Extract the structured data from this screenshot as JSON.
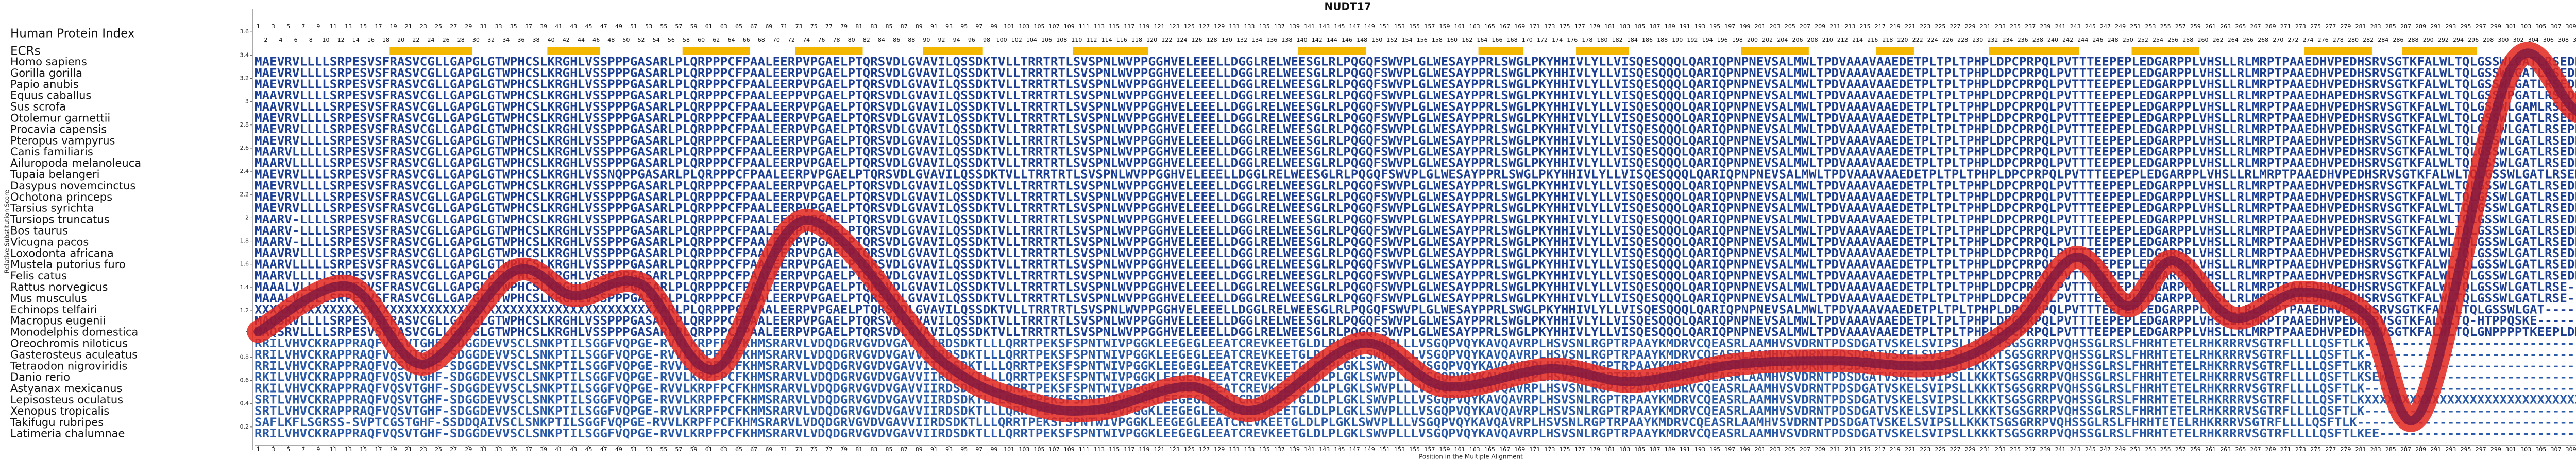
{
  "chart_data": {
    "type": "line",
    "title": "NUDT17",
    "x_label": "Position in the Multiple Alignment",
    "y_label": "Relative Substitution Score",
    "index_label": "Human Protein Index",
    "ecr_label": "ECRs",
    "ecr_color": "#f5b800",
    "ecrs": [
      [
        19,
        29
      ],
      [
        40,
        46
      ],
      [
        58,
        66
      ],
      [
        73,
        81
      ],
      [
        90,
        97
      ],
      [
        110,
        119
      ],
      [
        140,
        148
      ],
      [
        164,
        169
      ],
      [
        177,
        183
      ],
      [
        199,
        207
      ],
      [
        217,
        221
      ],
      [
        232,
        243
      ],
      [
        251,
        259
      ],
      [
        274,
        282
      ],
      [
        287,
        296
      ]
    ],
    "ylim": [
      0,
      3.8
    ],
    "yticks": [
      0.2,
      0.4,
      0.6,
      0.8,
      1,
      1.2,
      1.4,
      1.6,
      1.8,
      2,
      2.2,
      2.4,
      2.6,
      2.8,
      3,
      3.2,
      3.4,
      3.6
    ],
    "xlim": [
      0.5,
      324.5
    ],
    "xticks": [
      1,
      2,
      3,
      4,
      5,
      6,
      7,
      8,
      9,
      10,
      11,
      12,
      13,
      14,
      15,
      16,
      17,
      18,
      19,
      20,
      21,
      22,
      23,
      24,
      25,
      26,
      27,
      28,
      29,
      30,
      31,
      32,
      33,
      34,
      35,
      36,
      37,
      38,
      39,
      40,
      41,
      42,
      43,
      44,
      45,
      46,
      47,
      48,
      49,
      50,
      51,
      52,
      53,
      54,
      55,
      56,
      57,
      58,
      59,
      60,
      61,
      62,
      63,
      64,
      65,
      66,
      67,
      68,
      69,
      70,
      71,
      72,
      73,
      74,
      75,
      76,
      77,
      78,
      79,
      80,
      81,
      82,
      83,
      84,
      85,
      86,
      87,
      88,
      89,
      90,
      91,
      92,
      93,
      94,
      95,
      96,
      97,
      98,
      99,
      100,
      101,
      102,
      103,
      104,
      105,
      106,
      107,
      108,
      109,
      110,
      111,
      112,
      113,
      114,
      115,
      116,
      117,
      118,
      119,
      120,
      121,
      122,
      123,
      124,
      125,
      126,
      127,
      128,
      129,
      130,
      131,
      132,
      133,
      134,
      135,
      136,
      137,
      138,
      139,
      140,
      141,
      142,
      143,
      144,
      145,
      146,
      147,
      148,
      149,
      150,
      151,
      152,
      153,
      154,
      155,
      156,
      157,
      158,
      159,
      160,
      161,
      162,
      163,
      164,
      165,
      166,
      167,
      168,
      169,
      170,
      171,
      172,
      173,
      174,
      175,
      176,
      177,
      178,
      179,
      180,
      181,
      182,
      183,
      184,
      185,
      186,
      187,
      188,
      189,
      190,
      191,
      192,
      193,
      194,
      195,
      196,
      197,
      198,
      199,
      200,
      201,
      202,
      203,
      204,
      205,
      206,
      207,
      208,
      209,
      210,
      211,
      212,
      213,
      214,
      215,
      216,
      217,
      218,
      219,
      220,
      221,
      222,
      223,
      224,
      225,
      226,
      227,
      228,
      229,
      230,
      231,
      232,
      233,
      234,
      235,
      236,
      237,
      238,
      239,
      240,
      241,
      242,
      243,
      244,
      245,
      246,
      247,
      248,
      249,
      250,
      251,
      252,
      253,
      254,
      255,
      256,
      257,
      258,
      259,
      260,
      261,
      262,
      263,
      264,
      265,
      266,
      267,
      268,
      269,
      270,
      271,
      272,
      273,
      274,
      275,
      276,
      277,
      278,
      279,
      280,
      281,
      282,
      283,
      284,
      285,
      286,
      287,
      288,
      289,
      290,
      291,
      292,
      293,
      294,
      295,
      296,
      297,
      298,
      299,
      300,
      301,
      302,
      303,
      304,
      305,
      306,
      307,
      308,
      309,
      310,
      311,
      312,
      313,
      314,
      315,
      316,
      317,
      318,
      319,
      320,
      321,
      322,
      323,
      324
    ],
    "series": [
      {
        "color": "#e3261d",
        "x": [
          1,
          13,
          23,
          35,
          43,
          52,
          62,
          74,
          92,
          104,
          113,
          125,
          134,
          148,
          159,
          173,
          184,
          198,
          211,
          225,
          235,
          243,
          250,
          256,
          264,
          273,
          282,
          289,
          301,
          310,
          319,
          324
        ],
        "values": [
          1.02,
          1.41,
          0.74,
          1.54,
          1.33,
          1.43,
          0.7,
          1.98,
          0.77,
          0.4,
          0.35,
          0.55,
          0.35,
          0.92,
          0.55,
          0.7,
          0.59,
          0.74,
          0.77,
          0.74,
          1.06,
          1.66,
          1.24,
          1.63,
          1.14,
          1.36,
          1.14,
          0.33,
          3.28,
          2.91,
          2.72,
          2.72
        ]
      }
    ],
    "species": [
      {
        "name": "Homo sapiens",
        "sequence": "MAEVRVLLLLSRPESVSFRASVCGLLGAPGLGTWPHCSLKRGHLVSSPPPGASARLPLQRPPPCFPAALEERPVPGAELPTQRSVDLGVAVILQSSDKTVLLTRRTRTLSVSPNLWVPPGGHVELEEELLDGGLRELWEESGLRLPQGQFSWVPLGLWESAYPPRLSWGLPKYHHIVLYLLVISQESQQQLQARIQPNPNEVSALMWLTPDVAAAVAAEDETPLTPLTPHPLDPCPRPQLPVTTTEEPEPLEDGARPPLVHSLLRLMRPTPAAEDHVPEDHSRVSGTKFALWLTQLGSSWLGATLRSEDPGPGGLEPAGDCTGR"
      },
      {
        "name": "Gorilla gorilla",
        "sequence": "MAEVRVLLLLSRPESVSFRASVCGLLGAPGLGTWPHCSLKRGHLVSSPPPGASARLPLQRPPPCFPAALEERPVPGAELPTQRSVDLGVAVILQSSDKTVLLTRRTRTLSVSPNLWVPPGGHVELEEELLDGGLRELWEESGLRLPQGQFSWVPLGLWESAYPPRLSWGLPKYHHIVLYLLVISQESQQQLQARIQPNPNEVSALMWLTPDVAAAVAAEDETPLTPLTPHPLDPCPRPQLPVTTTEEPEPLEDGARPPLVHSLLRLMRPTPAAEDHVPEDHSRVSGTKFALWLTQLGSSWLGATLRSEDPGPGGLEPAGDCTGQ"
      },
      {
        "name": "Papio anubis",
        "sequence": "MAEVRVLLLLSRPESVSFRASVCGLLGAPGLGTWPHCSLKRGHLVSSPPPGASARLPLQRPPPCFPAALEERPVPGAELPTQRSVDLGVAVILQSSDKTVLLTRRTRTLSVSPNLWVPPGGHVELEEELLDGGLRELWEESGLRLPQGQFSWVPLGLWESAYPPRLSWGLPKYHHIVLYLLVISQESQQQLQARIQPNPNEVSALMWLTPDVAAAVAAEDETPLTPLTPHPLDPCPRPQLPVTTTEEPEPLEDGARPPLVHSLLRLMRPTPAAEDHVPEDHSRVSGTKFALWLTQLGSSWLGATLRSEDPGPGGLEPAGDCMGR"
      },
      {
        "name": "Equus caballus",
        "sequence": "MAAVRVLLLLSRPESVSFRASVCGLLGAPGLGTWPHCSLKRGHLVSSPPPGASARLPLQRPPPCFPAALEEPPVPGAELPTQRSVDLGVAVILQSSDKTVLLTRRTRTLSVSPNLWVPPGGHVELEEELLDGGLRELWEESGLRLPQGQFSWVPLGLWESAYPPRLSWGLPKYHHIVLYLLVISQESQQQLQARIQPNPNEVSALMWLTPDVAAAVAAEDETPLTPLTPHPLDPCPRPQLPVTTTEEPEPLEDGARPPLVHSLLRLMRPTPAAEDHAPEDHSRVSGTKFALWLTQLGSSWPGATLRSEDPGPGGLEPAGDCTGR"
      },
      {
        "name": "Sus scrofa",
        "sequence": "MAAVRVLLLLSRPESVSFRASVCGLLGAPGLGTWPHCSLKRGHLVSSPPPGASARLPLQRPPPCFPAALEERPVPGAELPTQRSVDLGVAVILQSSDKTVLLTRRTRTLSVSPNLWVPPGGHVELEEELLDGGLRELWEESGLRLPQGQFSWVPLGLWESAYPPRLSWGLPKYHHIVLYLLVISQESQQQLQARIQPNPNEVSALMWLTPDVAAAVAAEDETPLTPLTPHPLDPCPRPQLPVTTTEEPEPLEDGARPPLVHSLLRLMRPTPAAEDHVPEDHSRVSGTKFALWLTQLGSSWLGAMLRSEDPGPGGLEPAGDCTGR"
      },
      {
        "name": "Otolemur garnettii",
        "sequence": "MAEVRVLLLLSRPESVSFRASVCGLLGAPGLGTWPHCSLKRGHLVSSPPPGASARLPLQRPPPCFPAALEERPVPGAELPTQRSVDLGVAVILQSSDKTVLLTRRTRTLSVSPNLWVPPGGHVELEEELLDGGLRELWEESGLRLPQGQFSWVPLGLWESAYPPRLSWGLPKYHHIVLYLLVISQESQQQLQARIQPNPNEVSALMWLTPDVAAAVAAEDETPLTPLTPHPLDPCPRPQLPVTTTEEPEPLEDGARPPLVHSLLRLMRPTPAAEDHVPEDHSRVSGTKFALWLTQLGSSWLGATLRSEDPGPAGLEPAGDCTGR"
      },
      {
        "name": "Procavia capensis",
        "sequence": "MAEVRVLLLLSRPESVSFRASVCGLLGAPGLGTWPHCSLKRGHLVSSPPPGASARLPLQRPPPCFPAALEERPVPGAELPTQRSVDLGVAVILQSSDKTVLLTRRTRTLSVSPNLWVPPGGHVELEEELLDGGLRELWEESGLRLPQGQFSWVPLGLWESAYPPRLSWGLPKYHHIVLYLLVISQESQQQLQARIQPNPNEVSALMWLTPDVAAAVAAEDETPLTPLTPHPLDPCPRPQLPVTTTEEPEPLEDGARPPLVHSLLRLMRPTPAAEDHVPEDHSRVSGTKFALWLTQLGSSWLGATLRSEPPGPGGLEPAGDCTGR"
      },
      {
        "name": "Pteropus vampyrus",
        "sequence": "MAEVRVLLLLSRPESVSFRASVCGLLGAPGLGTWPHCSLKRGHLVSSPPPGASARLPLQRPPPCFPAALEERPVPGAELPTQRSVDLGVAVILQSSDKTVLLTRRTRTLSVSPNLWVPPGGHVELEEELLDGGLRELWEESGLRLPQGQFSWVPLGLWESAYPPRLSWGLPKYHHIVLYLLVISQESQQQLQARIQPNPNEVSALMWLTPDVAAAVAAEDETPLTPLTPHPLDPCPRPQLPVTTTEEPEPLEDGARPPLVHSLLRLMRPTPAAEDHVPEDHSRVSGTKFALWLTQLGSSWLGATLRSEDPGPGGLEPAGDCTGR"
      },
      {
        "name": "Canis familiaris",
        "sequence": "MAARVLLLLLSRPESVSFRASVCGLLGAPGLGTWPHCSLKRGHLVSSPPPGASARLPLQRPPPCFPAALEERPVPGAELPTQRSVDLGVAVILQSSDKTVLLTRRTRTLSVSPNLWVPPGGHVELEEELLDGGLRELWEESGLRLPQGQFSWVPLGLWESAYPPRLSWGLPKYHHIVLYLLVISQESQQQLQARIQPNPNEVSALMWLTPDVAAAVAAEDETPLTPLTPHPLDPCPRPQLPVTTTEEPEPLEDGARPPLVHSLLRLMRPTPAAEDHVPEDHSRVSGTKFALWLTQLGSSWLGATLRSEDPGPGGLEPAGDCTGR"
      },
      {
        "name": "Ailuropoda melanoleuca",
        "sequence": "MAARVLLLLLSRPESVSFRASVCGLLGAPGLGTWPHCSLKRGHLVSSPPPGASARLPLQRPPPCFPAALEERPVPGAELPTQRSVDLGVAVILQSSDKTVLLTRRTRTLSVSPNLWVPPGGHVELEEELLDGGLRELWEESGLRLPQGQFSWVPLGLWESAYPPRLSWGLPKYHHIVLYLLVISQESQQQLQARIQPNPNEVSALMWLTPDVAAAVAAEDETPLTPLTPHPLDPCPRPQLPVTTTEEPEPLEDGARPPLVHSLLRLMRPTPAAEDHVPEDHSRVSGTKFALWLTQLGSSWLGATLRSEDPGPGGLEPAGDCTGR"
      },
      {
        "name": "Tupaia belangeri",
        "sequence": "MAEVRVLLLLSRPESVSFRASVCGLLGAPGLGTWPHCSLKRGHLVSSNQPPGASARLPLQRPPPCFPAALEERPVPGAELPTQRSVDLGVAVILQSSDKTVLLTRRTRTLSVSPNLWVPPGGHVELEEELLDGGLRELWEESGLRLPQGQFSWVPLGLWESAYPPRLSWGLPKYHHIVLYLLVISQESQQQLQARIQPNPNEVSALMWLTPDVAAAVAAEDETPLTPLTPHPLDPCPRPQLPVTTTEEPEPLEDGARPPLVHSLLRLMRPTPAAEDHVPEDHSRVSGTKFALWLTQLGSSWLGATLRSEDPGPGGLEPAGDCTGR"
      },
      {
        "name": "Dasypus novemcinctus",
        "sequence": "MAEVRVLLLLSRPESVSFRASVCGLLGAPGLGTWPHCSLKRGHLVSSPPPGASARLPLQRPPPCFPAALEERPVPGAELPTQRSVDLGVAVILQSSDKTVLLTRRTRTLSVSPNLWVPPGGHVELEEELLDGGLRELWEESGLRLPQGQFSWVPLGLWESAYPPRLSWGLPKYHHIVLYLLVISQESQQQLQARIQPNPNEVSALMWLTPDVAAAVAAEDETPLTPLTPHPLDPCPRPQLPVTTTEEPEPLEDGARPPLVHSLLRLMRPTPAAEDHVPEDHSRVSGTKFALWLTQLGSSWLGATLRSEDPGPGGLEPAGDCTGR"
      },
      {
        "name": "Ochotona princeps",
        "sequence": "MAEVRVLLLLSRPESVSFRASVCGLLGAPGLGTWPHCSLKRGHLVSSPPPGASARLPLQRPPPCFPAALEERPVPGAELPTQRSVDLGVAVILQSSDKTVLLTRRTRTLSVSPNLWVPPGGHVELEEELLDGGLRELWEESGLRLPQGQFSWVPLGLWESAYPPRLSWGLPKYHHIVLYLLVISQESQQQLQARIQPNPNEVSALMWLTPDVAAAVAAEDETPLTPLTPHPLDPCPRPQLPVTTTEEPEPLEDGARPPLVHSLLRLMRPTPAAEDHVPEDHSRVSGTKFALWLTQLGSSWLGATLRSEDPGPGGLEPAGDCTGR"
      },
      {
        "name": "Tarsius syrichta",
        "sequence": "MAEVRVLLLLSRPESVSFRASVCGLLGAPGLGTWPHCSLKRGHLVSSPPPGASARLPLQRPPPCFPAALEERPVPGAELPTQRSVDLGVAVILQSSDKTVLLTRRTRTLSVSPNLWVPPGGHVELEEELLDGGLRELWEESGLRLPQGQFSWVPLGLWESAYPPRLSWGLPKYHHIVLYLLVISQESQQQLQARIQPNPNEVSALMWLTPDVAAAVAAEDETPLTPLTPHPLDPCPRPQLPVTTTEEPEPLEDGARPPLVHSLLRLMRPTPAAEDHVPEDHSRVSGTKFALWLTQLGSSWLGATLRSEDPGPGGLEPAGDCTGR"
      },
      {
        "name": "Tursiops truncatus",
        "sequence": "MAARV-LLLLSRPESVSFRASVCGLLGAPGLGTWPHCSLKRGHLVSSPPPGASARLPLQRPPPCFPAALEERPVPGAELPTQRSVDLGVAVILQSSDKTVLLTRRTRTLSVSPNLWVPPGGHVELEEELLDGGLRELWEESGLRLPQGQFSWVPLGLWESAYPPRLSWGLPKYHHIVLYLLVISQESQQQLQARIQPNPNEVSALMWLTPDVAAAVAAEDETPLTPLTPHPLDPCPRPQLPVTTTEEPEPLEDGARPPLVHSLLRLMRPTPAAEDHVPEDHSRVSGTKFALWLTQLGSSWLGATLRSEDPGPGGLEPAGDCTGR"
      },
      {
        "name": "Bos taurus",
        "sequence": "MAARV-LLLLSRPESVSFRASVCGLLGAPGLGTWPHCSLKRGHLVSSPPPGASARLPLQRPPPCFPAALEERPVPGAELPTQRSVDLGVAVILQSSDKTVLLTRRTRTLSVSPNLWVPPGGHVELEEELLDGGLRELWEESGLRLPQGQFSWVPLGLWESAYPPRLSWGLPKYHHIVLYLLVISQESQQQLQARIQPNPNEVSALMWLTPDVAAAVAAEDETPLTPLTPHPLDPCPRPQLPVTTTEEPEPLEDGARPPLVHSLLRLMRPTPAAEDHVPEDHSRVSGTKFALWLTQLGSSWLGATLRSEDPGPGGLEPAGDCTGR"
      },
      {
        "name": "Vicugna pacos",
        "sequence": "MAARV-LLLLSRPESVSFRASVCGLLGAPGLGTWPHCSLKRGHLVSSPPPGASARLPLQRPPPCFPAALEERPVPGAELPTQRSVDLGVAVILQSSDKTVLLTRRTRTLSVSPNLWVPPGGHVELEEELLDGGLRELWEESGLRLPQGQFSWVPLGLWESAYPPRLSWGLPKYHHIVLYLLVISQESQQQLQARIQPNPNEVSALMWLTPDVAAAVAAEDETPLTPLTPHPLDPCPRPQLPVTTTEEPEPLEDGARPPLVHSLLRLMRPTPAAEDHVPEDHSRVSGTKFALWLTQLGSSWLGATLRSEDPGPGGLEPAGDCTGR"
      },
      {
        "name": "Loxodonta africana",
        "sequence": "MAAVRVLLLLSRPESVSFRASVCGLLGAPGLGTWPHCSLKRGHLVSSPPPGASARLPLQRPPPCFPAALEERPVPGAELPTQRSVDLGVAVILQSSDKTVLLTRRTRTLSVSPNLWVPPGGHVELEEELLDGGLRELWEESGLRLPQGQFSWVPLGLWESAYPPRLSWGLPKYHHIVLYLLVISQESQQQLQARIQPNPNEVSALMWLTPDVAAAVAAEDETPLTPLTPHPLDPCPRPQLPVTTTEEPEPLEDGARPPLVHSLLRLMRPTPAAEDHVPEDHSRVSGTKFALWLTQLGSSWLGATLRSEDPGPGGLEPAGDCTGR"
      },
      {
        "name": "Mustela putorius furo",
        "sequence": "MAARVLLLLLSRPESVSFRASVCGLLGAPGLGTWPHCSLKRGHLVSSPPPGASARLPLQRPPPCFPAALEERPVPGAELPTQRSVDLGVAVILQSSDKTVLLTRRTRTLSVSPNLWVPPGGHVELEEELLDGGLRELWEESGLRLPQGQFSWVPLGLWESAYPPRLSWGLPKYHHIVLYLLVISQESQQQLQARIQPNPNEVSALMWLTPDVAAAVAAEDETPLTPLTPHPLDPCPRPQLPVTTTEEPEPLEDGARPPLVHSLLRLMRPTPAAEDHVPEDHSRVSGTKFALWLTQLGSSWLGATLRSEDPGPGGLEPAGDCTGR"
      },
      {
        "name": "Felis catus",
        "sequence": "MAARVLLLLLSRPESVSFRASVCGLLGAPGLGTWPHCSLKRGHLVSSPPPGASARLPLQRPPPCFPAALEERPVPGAELPTQRSVDLGVAVILQSSDKTVLLTRRTRTLSVSPNLWVPPGGHVELEEELLDGGLRELWEESGLRLPQGQFSWVPLGLWESAYPPRLSWGLPKYHHIVLYLLVISQESQQQLQARIQPNPNEVSALMWLTPDVAAAVAAEDETPLTPLTPHPLDPCPRPQLPVTTTEEPEPLEDGARPPLVHSLLRLMRPTPAAEDHVPEDHSRVSGTKFALWLTQLGSSWLGATLRSEDPGPGGLEPAGDCTGR"
      },
      {
        "name": "Rattus norvegicus",
        "sequence": "MAAALVLLLLSRPESVSFRASVCGLLGAPGLGTWPHCSLKRGHLVSSPPPGASARLPLQRPPPCFPAALEERPVPGAELPTQRSVDLGVAVILQSSDKTVLLTRRTRTLSVSPNLWVPPGGHVELEEELLDGGLRELWEESGLRLPQGQFSWVPLGLWESAYPPRLSWGLPKYHHIVLYLLVISQESQQQLQARIQPNPNEVSALMWLTPDVAAAVAAEDETPLTPLTPHPLDPCPRPQLPVTTTEEPEPLEDGARPPLVHSLLRLMRPTPAAEDHVPEDHSRVSGTKFALWLTQLGSSWLGATLRSE----------------"
      },
      {
        "name": "Mus musculus",
        "sequence": "MAAALVLLLLSRPESVSFRASVCGLLGAPGLGTWPHCSLKRGHLVSSPPPGASARLPLQRPPPCFPAALEERPVPGAELPTQRSVDLGVAVILQSSDKTVLLTRRTRTLSVSPNLWVPPGGHVELEEELLDGGLRELWEESGLRLPQGQFSWVPLGLWESAYPPRLSWGLPKYHHIVLYLLVISQESQQQLQARIQPNPNEVSALMWLTPDVAAAVAAEDETPLTPLTPHPLDPCPRPQLPVTTTEEPEPLEDGARPPLVHSLLRLMRPTPAAEDHVPEDHSRVSGTKFALWLTQLGSSWLGATLRSE----------------"
      },
      {
        "name": "Echinops telfairi",
        "sequence": "XXXXXXXXXXXXXXXXXXXXXXXXXXXXXXXXXXXXXXXXXXXXXXXXXXXXXXARLPLQRPPPCFPAALEERPVPGAELPTQRSVDLGVAVILQSSDKTVLLTRRTRTLSVSPNLWVPPGGHVELEEELLDGGLRELWEESGLRLPQGQFSWVPLGLWESAYPPRLSWGLPKYHHIVLYLLVISQESQQQLQARIQPNPNEVSALMWLTPDVAAAVAAEDETPLTPLTPHPLDPCPRPQLPVTTTEEPEPLEDGARPPLVHSLLRLMRPTPAAEDHVPEDHSRVSGTKFALWLTQLGSSWLGAT---------------------"
      },
      {
        "name": "Macropus eugenii",
        "sequence": "MAQSRVLLLLSRPESVSFRASVCGLLGAPGLGTWPHCSLKRGHLVSSPPPGASARLPLQRPPPCFPAALEERPVPGAELPTQRSVDLGVAVILQSSDKTVLLTRRTRTLSVSPNLWVPPGGHVELEEELLDGGLRELWEESGLRLPQGQFSWVPLGLWESAYPPRLSWGLPKYHHIVLYLLVISQESQQQLQARIQPNPNEVSALMWLTPDVAAAVAAEDETPLTPLTPHPLDPCPRPQLPVTTTEEPEPLEDGARPPLVHSLLRLMRPTPAAEDHVPEDHSRVSGTKFALWLTQ-HTPPQSKE--------------"
      },
      {
        "name": "Monodelphis domestica",
        "sequence": "MAQSRVLLLLSRPESVSFRASVCGLLGAPGLGTWPHCSLKRGHLVSSPPPGASARLPLQRPPPCFPAALEERPVPGAELPTQRSVDLGVAVILQSSDKTVLLTRRTRTLSVSPNLWVPPGGHVELEEELLDGGLRELWEESGLRLPQGQFSWVPLGLWESAYPPRLSWGLPKYHHIVLYLLVISQESQQQLQARIQPNPNEVSALMWLTPDVAAAVAAEDETPLTPLTPHPLDPCPRPQLPVTTTEEPEPLEDGARPPLVHSLLRLMRPTPAAEDHVPEDHSRVSGTKFALWLTQLGNPPPPTKEEPLDDEE------"
      },
      {
        "name": "Oreochromis niloticus",
        "sequence": "RRILVHVCKRAPPRAQFVQSVTGHF-SDGGDEVVSCLSNKPTILSGGFVQPGE-RVVLKRPFPCFKHMSRARVLVDQDGRVGVDVGAVVIIRDSDKTLLLQRRTPEKSFSPNTWIVPGGKLEEGEGLEEATCREVKEETGLDLPLGKLSWVPLLLVSGQPVQYKAVQAVRPLHSVSNLRGPTRPAAYKMDRVCQEASRLAAMHVSVDRNTPDSDGATVSKELSVIPSLLKKKTSGSGRRPVQHSSGLRSLFHRHTETELRHKRRRVSGTRFLLLLQSFTLK-----------------------------------"
      },
      {
        "name": "Gasterosteus aculeatus",
        "sequence": "RRILVHVCKRAPPRAQFVQSVTGHF-SDGGDEVVSCLSNKPTILSGGFVQPGE-RVVLKRPFPCFKHMSRARVLVDQDGRVGVDVGAVVIIRDSDKTLLLQRRTPEKSFSPNTWIVPGGKLEEGEGLEEATCREVKEETGLDLPLGKLSWVPLLLVSGQPVQYKAVQAVRPLHSVSNLRGPTRPAAYKMDRVCQEASRLAAMHVSVDRNTPDSDGATVSKELSVIPSLLKKKTSGSGRRPVQHSSGLRSLFHRHTETELRHKRRRVSGTRFLLLLQSFTLK-----------------------------------"
      },
      {
        "name": "Tetraodon nigroviridis",
        "sequence": "RRILVHVCKRAPPRAQFVQSVTGHF-SDGGDEVVSCLSNKPTILSGGFVQPGE-RVVLKRPFPCFKHMSRARVLVDQDGRVGVDVGAVVIIRDSDKTLLLQRRTPEKSFSPNTWIVPGGKLEEGEGLEEATCREVKEETGLDLPLGKLSWVPLLLVSGQPVQYKAVQAVRPLHSVSNLRGPTRPAAYKMDRVCQEASRLAAMHVSVDRNTPDSDGATVSKELSVIPSLLKKKTSGSGRRPVQHSSGLRSLFHRHTETELRHKRRRVSGTRFLLLLQSFTLKR----------------------------------"
      },
      {
        "name": "Danio rerio",
        "sequence": "RKILVHVCKRAPPRAQFVQSVTGHF-SDGGDEVVSCLSNKPTILSGGFVQPGE-RVVLKRPFPCFKHMSRARVLVDQDGRVGVDVGAVVIIRDSDKTLLLQRRTPEKSFSPNTWIVPGGKLEEGEGLEEATCREVKEETGLDLPLGKLSWVPLLLVSGQPVQYKAVQAVRPLHSVSNLRGPTRPAAYKMDRVCQEASRLAAMHVSVDRNTPDSDGATVSKELSVIPSLLKKKTSGSGRRPVQHSSGLRSLFHRHTETELRHKRRRVSGTRFLLLLQSFTLKSEW--------------------------------"
      },
      {
        "name": "Astyanax mexicanus",
        "sequence": "RKILVHVCKRAPPRAQFVQSVTGHF-SDGGDEVVSCLSNKPTILSGGFVQPGE-RVVLKRPFPCFKHMSRARVLVDQDGRVGVDVGAVVIIRDSDKTLLLQRRTPEKSFSPNTWIVPGGKLEEGEGLEEATCREVKEETGLDLPLGKLSWVPLLLVSGQPVQYKAVQAVRPLHSVSNLRGPTRPAAYKMDRVCQEASRLAAMHVSVDRNTPDSDGATVSKELSVIPSLLKKKTSGSGRRPVQHSSGLRSLFHRHTETELRHKRRRVSGTRFLLLLQSFTLK-----------------------------------"
      },
      {
        "name": "Lepisosteus oculatus",
        "sequence": "SRTLVHVCKRAPPRAQFVQSVTGHF-SDGGDEVVSCLSNKPTILSGGFVQPGE-RVVLKRPFPCFKHMSRARVLVDQDGRVGVDVGAVVIIRDSDKTLLLQRRTPEKSFSPNTWIVPGGKLEEGEGLEEATCREVKEETGLDLPLGKLSWVPLLLVSGQPVQYKAVQAVRPLHSVSNLRGPTRPAAYKMDRVCQEASRLAAMHVSVDRNTPDSDGATVSKELSVIPSLLKKKTSGSGRRPVQHSSGLRSLFHRHTETELRHKRRRVSGTRFLLLLQSFTLKXXXXXXXXXXXXXXXXXXXXXXXXXXXXXXXXXXX"
      },
      {
        "name": "Xenopus tropicalis",
        "sequence": "SRTLVHVCKRAPPRAQFVQSVTGHF-SDGGDEVVSCLSNKPTILSGGFVQPGE-RVVLKRPFPCFKHMSRARVLVDQDGRVGVDVGAVVIIRDSDKTLLLQRRTPEKSFSPNTWIVPGGKLEEGEGLEEATCREVKEETGLDLPLGKLSWVPLLLVSGQPVQYKAVQAVRPLHSVSNLRGPTRPAAYKMDRVCQEASRLAAMHVSVDRNTPDSDGATVSKELSVIPSLLKKKTSGSGRRPVQHSSGLRSLFHRHTETELRHKRRRVSGTRFLLLLQSFTLK-----------------------------------"
      },
      {
        "name": "Takifugu rubripes",
        "sequence": "SAFLKFLSGRSS-SVPTCGSTGHF-SSDDQAIVSCLSNKPTILSGGFVQPGE-RVVLKRPFPCFKHMSRARVLVDQDGRVGVDVGAVVIIRDSDKTLLLQRRTPEKSFSPNTWIVPGGKLEEGEGLEEATCREVKEETGLDLPLGKLSWVPLLLVSGQPVQYKAVQAVRPLHSVSNLRGPTRPAAYKMDRVCQEASRLAAMHVSVDRNTPDSDGATVSKELSVIPSLLKKKTSGSGRRPVQHSSGLRSLFHRHTETELRHKRRRVSGTRFLLLLQSFTLK-----------------------------------"
      },
      {
        "name": "Latimeria chalumnae",
        "sequence": "RRILVHVCKRAPPRAQFVQSVTGHF-SDGGDEVVSCLSNKPTILSGGFVQPGE-RVVLKRPFPCFKHMSRARVLVDQDGRVGVDVGAVVIIRDSDKTLLLQRRTPEKSFSPNTWIVPGGKLEEGEGLEEATCREVKEETGLDLPLGKLSWVPLLLVSGQPVQYKAVQAVRPLHSVSNLRGPTRPAAYKMDRVCQEASRLAAMHVSVDRNTPDSDGATVSKELSVIPSLLKKKTSGSGRRPVQHSSGLRSLFHRHTETELRHKRRRVSGTRFLLLLQSFTLKEE---------------------------------"
      }
    ]
  }
}
